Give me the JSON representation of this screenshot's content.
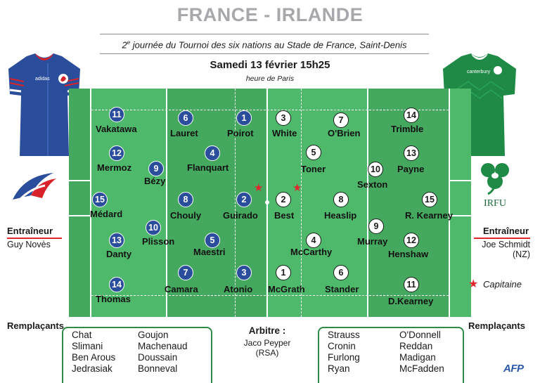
{
  "header": {
    "title": "FRANCE - IRLANDE",
    "subtitle_sup": "e",
    "subtitle_pre": "2",
    "subtitle_rest": " journée du Tournoi des six nations au Stade de France, Saint-Denis",
    "date": "Samedi 13 février 15h25",
    "timezone": "heure de Paris"
  },
  "colors": {
    "france": "#2a4d9c",
    "ireland_jersey": "#1e8a46",
    "pitch": "#4fb96b",
    "captain": "#e3262c",
    "afp": "#2a58a8"
  },
  "france": {
    "logo_icon": "ffr-rooster-logo",
    "jersey_icon": "france-jersey",
    "coach_label": "Entraîneur",
    "coach": "Guy Novès",
    "players": [
      {
        "num": "11",
        "name": "Vakatawa"
      },
      {
        "num": "6",
        "name": "Lauret"
      },
      {
        "num": "1",
        "name": "Poirot"
      },
      {
        "num": "12",
        "name": "Mermoz"
      },
      {
        "num": "4",
        "name": "Flanquart"
      },
      {
        "num": "9",
        "name": "Bézy"
      },
      {
        "num": "15",
        "name": "Médard"
      },
      {
        "num": "8",
        "name": "Chouly"
      },
      {
        "num": "2",
        "name": "Guirado"
      },
      {
        "num": "10",
        "name": "Plisson"
      },
      {
        "num": "13",
        "name": "Danty"
      },
      {
        "num": "5",
        "name": "Maestri"
      },
      {
        "num": "7",
        "name": "Camara"
      },
      {
        "num": "3",
        "name": "Atonio"
      },
      {
        "num": "14",
        "name": "Thomas"
      }
    ],
    "subs_label": "Remplaçants",
    "subs_col1": [
      "Chat",
      "Slimani",
      "Ben Arous",
      "Jedrasiak"
    ],
    "subs_col2": [
      "Goujon",
      "Machenaud",
      "Doussain",
      "Bonneval"
    ]
  },
  "ireland": {
    "logo_icon": "irfu-shamrock-logo",
    "logo_text": "IRFU",
    "jersey_icon": "ireland-jersey",
    "coach_label": "Entraîneur",
    "coach": "Joe Schmidt",
    "coach_country": "(NZ)",
    "players": [
      {
        "num": "3",
        "name": "White"
      },
      {
        "num": "7",
        "name": "O'Brien"
      },
      {
        "num": "14",
        "name": "Trimble"
      },
      {
        "num": "5",
        "name": "Toner"
      },
      {
        "num": "13",
        "name": "Payne"
      },
      {
        "num": "10",
        "name": "Sexton"
      },
      {
        "num": "2",
        "name": "Best"
      },
      {
        "num": "8",
        "name": "Heaslip"
      },
      {
        "num": "15",
        "name": "R. Kearney"
      },
      {
        "num": "9",
        "name": "Murray"
      },
      {
        "num": "4",
        "name": "McCarthy"
      },
      {
        "num": "12",
        "name": "Henshaw"
      },
      {
        "num": "1",
        "name": "McGrath"
      },
      {
        "num": "6",
        "name": "Stander"
      },
      {
        "num": "11",
        "name": "D.Kearney"
      }
    ],
    "subs_label": "Remplaçants",
    "subs_col1": [
      "Strauss",
      "Cronin",
      "Furlong",
      "Ryan"
    ],
    "subs_col2": [
      "O'Donnell",
      "Reddan",
      "Madigan",
      "McFadden"
    ]
  },
  "captain_label": "Capitaine",
  "referee": {
    "label": "Arbitre :",
    "name": "Jaco Peyper",
    "country": "(RSA)"
  },
  "credit": "AFP"
}
